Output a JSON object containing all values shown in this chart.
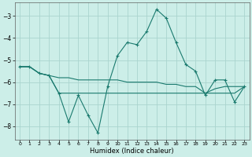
{
  "xlabel": "Humidex (Indice chaleur)",
  "bg_color": "#cceee8",
  "grid_color": "#aad4ce",
  "line_color": "#1a7a6e",
  "x": [
    0,
    1,
    2,
    3,
    4,
    5,
    6,
    7,
    8,
    9,
    10,
    11,
    12,
    13,
    14,
    15,
    16,
    17,
    18,
    19,
    20,
    21,
    22,
    23
  ],
  "series1": [
    -5.3,
    -5.3,
    -5.6,
    -5.7,
    -6.5,
    -7.8,
    -6.6,
    -7.5,
    -8.3,
    -6.2,
    -4.8,
    -4.2,
    -4.3,
    -3.7,
    -2.7,
    -3.1,
    -4.2,
    -5.2,
    -5.5,
    -6.6,
    -5.9,
    -5.9,
    -6.9,
    -6.2
  ],
  "series2": [
    -5.3,
    -5.3,
    -5.6,
    -5.7,
    -5.8,
    -5.8,
    -5.9,
    -5.9,
    -5.9,
    -5.9,
    -5.9,
    -6.0,
    -6.0,
    -6.0,
    -6.0,
    -6.1,
    -6.1,
    -6.2,
    -6.2,
    -6.5,
    -6.3,
    -6.2,
    -6.2,
    -6.2
  ],
  "series3": [
    -5.3,
    -5.3,
    -5.6,
    -5.7,
    -6.5,
    -6.5,
    -6.5,
    -6.5,
    -6.5,
    -6.5,
    -6.5,
    -6.5,
    -6.5,
    -6.5,
    -6.5,
    -6.5,
    -6.5,
    -6.5,
    -6.5,
    -6.5,
    -6.5,
    -6.5,
    -6.5,
    -6.2
  ],
  "ylim": [
    -8.6,
    -2.4
  ],
  "xlim": [
    -0.5,
    23.5
  ],
  "yticks": [
    -3,
    -4,
    -5,
    -6,
    -7,
    -8
  ],
  "xticks": [
    0,
    1,
    2,
    3,
    4,
    5,
    6,
    7,
    8,
    9,
    10,
    11,
    12,
    13,
    14,
    15,
    16,
    17,
    18,
    19,
    20,
    21,
    22,
    23
  ],
  "figwidth": 3.2,
  "figheight": 2.0,
  "dpi": 100
}
